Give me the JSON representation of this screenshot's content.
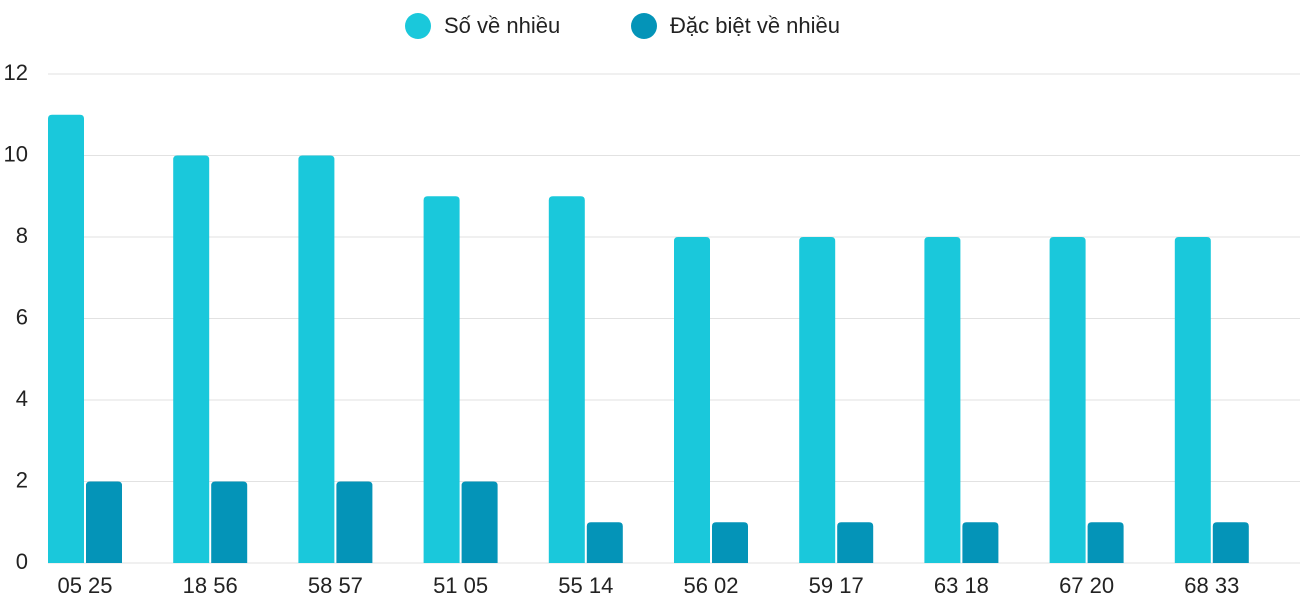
{
  "chart_data": {
    "type": "bar",
    "categories": [
      "05 25",
      "18 56",
      "58 57",
      "51 05",
      "55 14",
      "56 02",
      "59 17",
      "63 18",
      "67 20",
      "68 33"
    ],
    "series": [
      {
        "name": "Số về nhiều",
        "color": "#1ac8db",
        "values": [
          11,
          10,
          10,
          9,
          9,
          8,
          8,
          8,
          8,
          8
        ]
      },
      {
        "name": "Đặc biệt về nhiều",
        "color": "#0494b8",
        "values": [
          2,
          2,
          2,
          2,
          1,
          1,
          1,
          1,
          1,
          1
        ]
      }
    ],
    "ylim": [
      0,
      12
    ],
    "yticks": [
      0,
      2,
      4,
      6,
      8,
      10,
      12
    ],
    "grid": true
  }
}
